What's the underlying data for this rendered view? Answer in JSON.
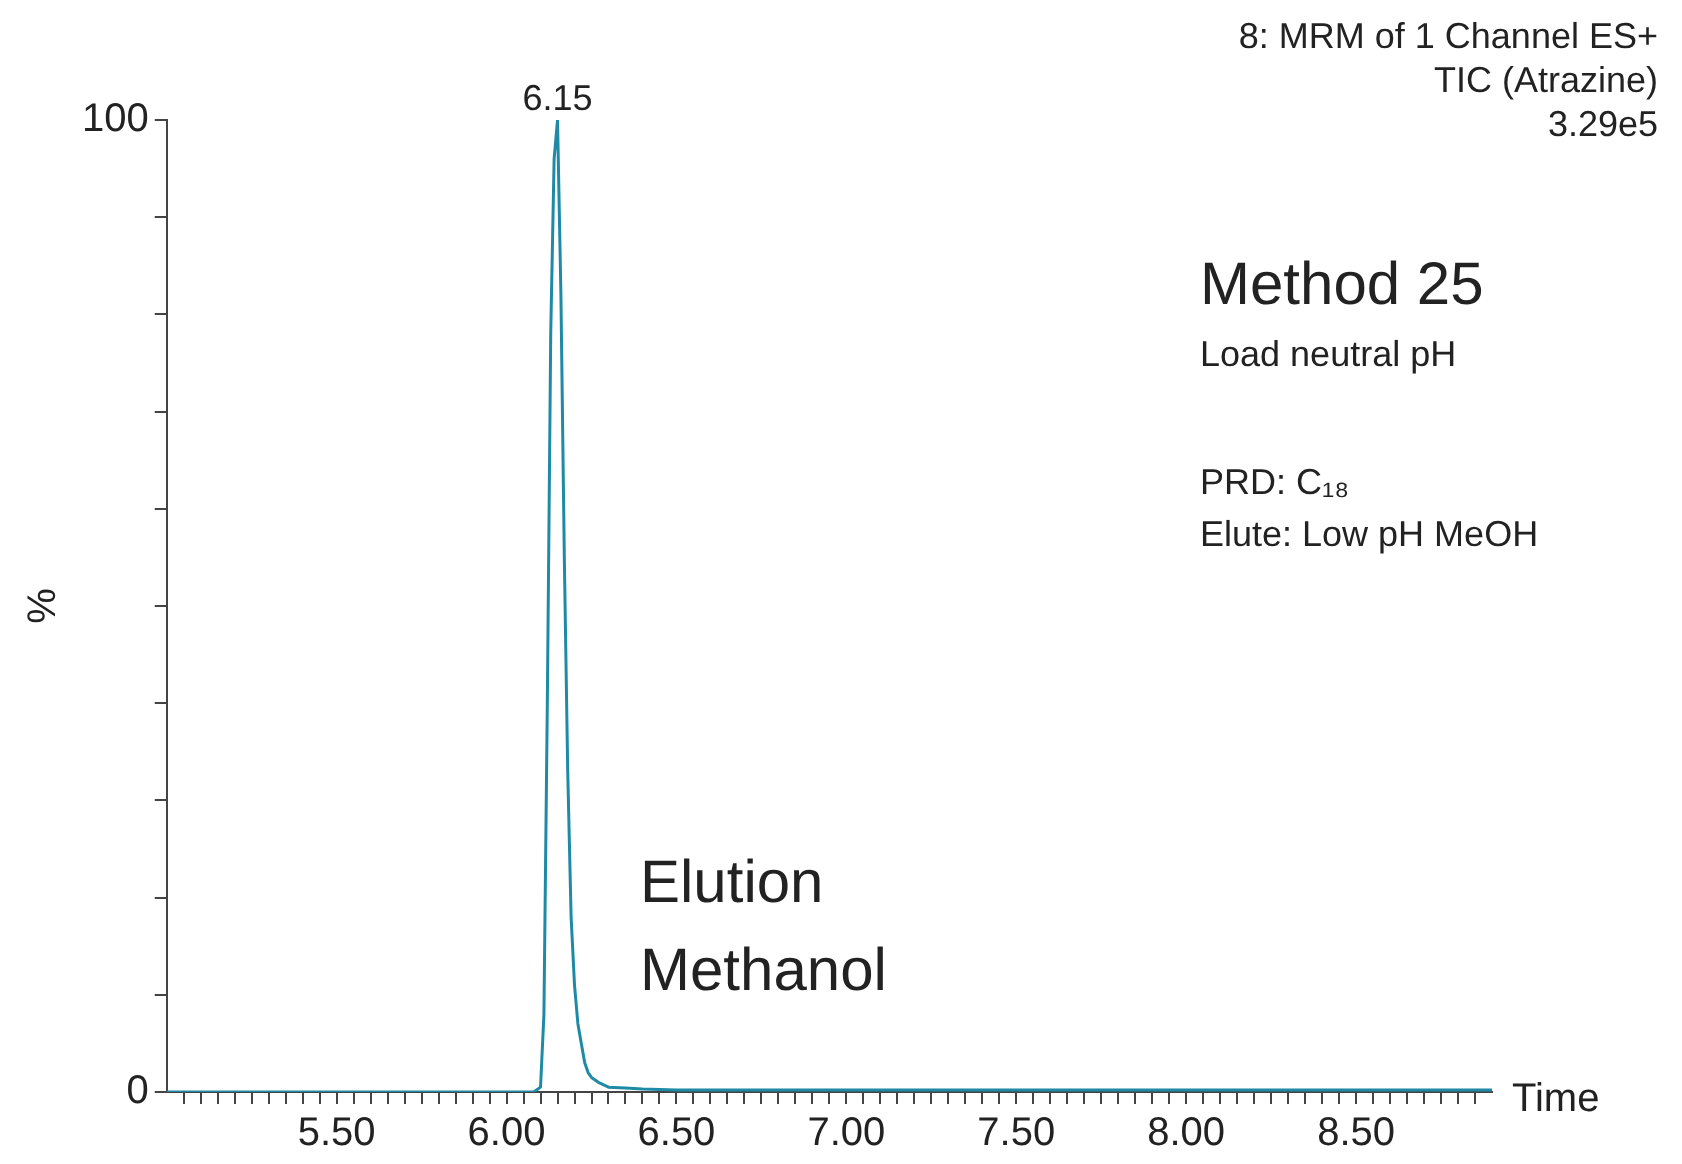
{
  "chart_data": {
    "type": "line",
    "xlabel": "Time",
    "ylabel": "%",
    "x": [
      5.0,
      5.5,
      6.0,
      6.08,
      6.1,
      6.11,
      6.12,
      6.13,
      6.14,
      6.15,
      6.16,
      6.17,
      6.18,
      6.19,
      6.2,
      6.21,
      6.22,
      6.23,
      6.24,
      6.25,
      6.27,
      6.3,
      6.35,
      6.4,
      6.5,
      7.0,
      7.5,
      8.0,
      8.5,
      8.9
    ],
    "series": [
      {
        "color": "#1f8aa6",
        "values": [
          0,
          0,
          0,
          0,
          0.5,
          8,
          40,
          78,
          96,
          100,
          82,
          55,
          33,
          18,
          11,
          7,
          5,
          3,
          2,
          1.5,
          1,
          0.5,
          0.4,
          0.3,
          0.2,
          0.2,
          0.2,
          0.2,
          0.2,
          0.2
        ]
      }
    ],
    "xlim": [
      5.0,
      8.9
    ],
    "xticks": [
      {
        "value": 5.05,
        "label": null
      },
      {
        "value": 5.1,
        "label": null
      },
      {
        "value": 5.15,
        "label": null
      },
      {
        "value": 5.2,
        "label": null
      },
      {
        "value": 5.25,
        "label": null
      },
      {
        "value": 5.3,
        "label": null
      },
      {
        "value": 5.35,
        "label": null
      },
      {
        "value": 5.4,
        "label": null
      },
      {
        "value": 5.45,
        "label": null
      },
      {
        "value": 5.5,
        "label": "5.50"
      },
      {
        "value": 5.55,
        "label": null
      },
      {
        "value": 5.6,
        "label": null
      },
      {
        "value": 5.65,
        "label": null
      },
      {
        "value": 5.7,
        "label": null
      },
      {
        "value": 5.75,
        "label": null
      },
      {
        "value": 5.8,
        "label": null
      },
      {
        "value": 5.85,
        "label": null
      },
      {
        "value": 5.9,
        "label": null
      },
      {
        "value": 5.95,
        "label": null
      },
      {
        "value": 6.0,
        "label": "6.00"
      },
      {
        "value": 6.05,
        "label": null
      },
      {
        "value": 6.1,
        "label": null
      },
      {
        "value": 6.15,
        "label": null
      },
      {
        "value": 6.2,
        "label": null
      },
      {
        "value": 6.25,
        "label": null
      },
      {
        "value": 6.3,
        "label": null
      },
      {
        "value": 6.35,
        "label": null
      },
      {
        "value": 6.4,
        "label": null
      },
      {
        "value": 6.45,
        "label": null
      },
      {
        "value": 6.5,
        "label": "6.50"
      },
      {
        "value": 6.55,
        "label": null
      },
      {
        "value": 6.6,
        "label": null
      },
      {
        "value": 6.65,
        "label": null
      },
      {
        "value": 6.7,
        "label": null
      },
      {
        "value": 6.75,
        "label": null
      },
      {
        "value": 6.8,
        "label": null
      },
      {
        "value": 6.85,
        "label": null
      },
      {
        "value": 6.9,
        "label": null
      },
      {
        "value": 6.95,
        "label": null
      },
      {
        "value": 7.0,
        "label": "7.00"
      },
      {
        "value": 7.05,
        "label": null
      },
      {
        "value": 7.1,
        "label": null
      },
      {
        "value": 7.15,
        "label": null
      },
      {
        "value": 7.2,
        "label": null
      },
      {
        "value": 7.25,
        "label": null
      },
      {
        "value": 7.3,
        "label": null
      },
      {
        "value": 7.35,
        "label": null
      },
      {
        "value": 7.4,
        "label": null
      },
      {
        "value": 7.45,
        "label": null
      },
      {
        "value": 7.5,
        "label": "7.50"
      },
      {
        "value": 7.55,
        "label": null
      },
      {
        "value": 7.6,
        "label": null
      },
      {
        "value": 7.65,
        "label": null
      },
      {
        "value": 7.7,
        "label": null
      },
      {
        "value": 7.75,
        "label": null
      },
      {
        "value": 7.8,
        "label": null
      },
      {
        "value": 7.85,
        "label": null
      },
      {
        "value": 7.9,
        "label": null
      },
      {
        "value": 7.95,
        "label": null
      },
      {
        "value": 8.0,
        "label": "8.00"
      },
      {
        "value": 8.05,
        "label": null
      },
      {
        "value": 8.1,
        "label": null
      },
      {
        "value": 8.15,
        "label": null
      },
      {
        "value": 8.2,
        "label": null
      },
      {
        "value": 8.25,
        "label": null
      },
      {
        "value": 8.3,
        "label": null
      },
      {
        "value": 8.35,
        "label": null
      },
      {
        "value": 8.4,
        "label": null
      },
      {
        "value": 8.45,
        "label": null
      },
      {
        "value": 8.5,
        "label": "8.50"
      },
      {
        "value": 8.55,
        "label": null
      },
      {
        "value": 8.6,
        "label": null
      },
      {
        "value": 8.65,
        "label": null
      },
      {
        "value": 8.7,
        "label": null
      },
      {
        "value": 8.75,
        "label": null
      },
      {
        "value": 8.8,
        "label": null
      },
      {
        "value": 8.85,
        "label": null
      }
    ],
    "ylim": [
      0,
      100
    ],
    "yticks": [
      0,
      {
        "value": 10,
        "label": null
      },
      {
        "value": 20,
        "label": null
      },
      {
        "value": 30,
        "label": null
      },
      {
        "value": 40,
        "label": null
      },
      {
        "value": 50,
        "label": null
      },
      {
        "value": 60,
        "label": null
      },
      {
        "value": 70,
        "label": null
      },
      {
        "value": 80,
        "label": null
      },
      {
        "value": 90,
        "label": null
      },
      100
    ],
    "grid": false,
    "legend": false,
    "marker": "none",
    "line_style": "solid",
    "annotations": [
      {
        "text": "6.15",
        "x": 6.15,
        "y": 100
      },
      "8: MRM of 1 Channel ES+",
      "TIC (Atrazine)",
      "3.29e5",
      "Method 25",
      "Load neutral pH",
      "PRD: C₁₈",
      "Elute: Low pH MeOH",
      "Elution Methanol"
    ]
  }
}
